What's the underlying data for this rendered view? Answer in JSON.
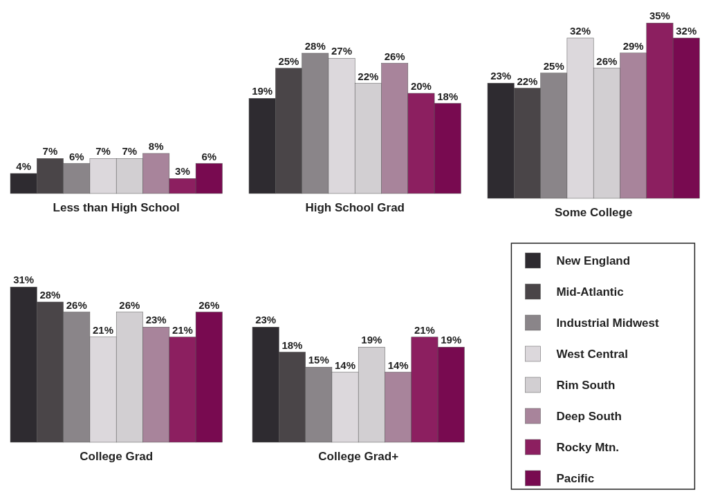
{
  "chart_data": [
    {
      "type": "bar",
      "xlabel": "Less than High School",
      "categories": [
        null
      ],
      "data_labels": false,
      "legend": false,
      "series": [
        {
          "color": "#2e2b30",
          "values": [
            4
          ],
          "value_labels": [
            "4%"
          ]
        },
        {
          "color": "#4a4548",
          "values": [
            7
          ],
          "value_labels": [
            "7%"
          ]
        },
        {
          "color": "#8a8589",
          "values": [
            6
          ],
          "value_labels": [
            "6%"
          ]
        },
        {
          "color": "#dcd8dc",
          "values": [
            7
          ],
          "value_labels": [
            "7%"
          ]
        },
        {
          "color": "#d2cfd2",
          "values": [
            7
          ],
          "value_labels": [
            "7%"
          ]
        },
        {
          "color": "#a8849b",
          "values": [
            8
          ],
          "value_labels": [
            "8%"
          ]
        },
        {
          "color": "#8c1f60",
          "values": [
            3
          ],
          "value_labels": [
            "3%"
          ]
        },
        {
          "color": "#780a50",
          "values": [
            6
          ],
          "value_labels": [
            "6%"
          ]
        }
      ]
    },
    {
      "type": "bar",
      "xlabel": "High School Grad",
      "categories": [
        null
      ],
      "legend": false,
      "series": [
        {
          "color": "#2e2b30",
          "values": [
            19
          ],
          "value_labels": [
            "19%"
          ]
        },
        {
          "color": "#4a4548",
          "values": [
            25
          ],
          "value_labels": [
            "25%"
          ]
        },
        {
          "color": "#8a8589",
          "values": [
            28
          ],
          "value_labels": [
            "28%"
          ]
        },
        {
          "color": "#dcd8dc",
          "values": [
            27
          ],
          "value_labels": [
            "27%"
          ]
        },
        {
          "color": "#d2cfd2",
          "values": [
            22
          ],
          "value_labels": [
            "22%"
          ]
        },
        {
          "color": "#a8849b",
          "values": [
            26
          ],
          "value_labels": [
            "26%"
          ]
        },
        {
          "color": "#8c1f60",
          "values": [
            20
          ],
          "value_labels": [
            "20%"
          ]
        },
        {
          "color": "#780a50",
          "values": [
            18
          ],
          "value_labels": [
            "18%"
          ]
        }
      ]
    },
    {
      "type": "bar",
      "xlabel": "Some College",
      "categories": [
        null
      ],
      "legend": false,
      "series": [
        {
          "color": "#2e2b30",
          "values": [
            23
          ],
          "value_labels": [
            "23%"
          ]
        },
        {
          "color": "#4a4548",
          "values": [
            22
          ],
          "value_labels": [
            "22%"
          ]
        },
        {
          "color": "#8a8589",
          "values": [
            25
          ],
          "value_labels": [
            "25%"
          ]
        },
        {
          "color": "#dcd8dc",
          "values": [
            32
          ],
          "value_labels": [
            "32%"
          ]
        },
        {
          "color": "#d2cfd2",
          "values": [
            26
          ],
          "value_labels": [
            "26%"
          ]
        },
        {
          "color": "#a8849b",
          "values": [
            29
          ],
          "value_labels": [
            "29%"
          ]
        },
        {
          "color": "#8c1f60",
          "values": [
            35
          ],
          "value_labels": [
            "35%"
          ]
        },
        {
          "color": "#780a50",
          "values": [
            32
          ],
          "value_labels": [
            "32%"
          ]
        }
      ]
    },
    {
      "type": "bar",
      "xlabel": "College Grad",
      "categories": [
        null
      ],
      "legend": false,
      "series": [
        {
          "color": "#2e2b30",
          "values": [
            31
          ],
          "value_labels": [
            "31%"
          ]
        },
        {
          "color": "#4a4548",
          "values": [
            28
          ],
          "value_labels": [
            "28%"
          ]
        },
        {
          "color": "#8a8589",
          "values": [
            26
          ],
          "value_labels": [
            "26%"
          ]
        },
        {
          "color": "#dcd8dc",
          "values": [
            21
          ],
          "value_labels": [
            "21%"
          ]
        },
        {
          "color": "#d2cfd2",
          "values": [
            26
          ],
          "value_labels": [
            "26%"
          ]
        },
        {
          "color": "#a8849b",
          "values": [
            23
          ],
          "value_labels": [
            "23%"
          ]
        },
        {
          "color": "#8c1f60",
          "values": [
            21
          ],
          "value_labels": [
            "21%"
          ]
        },
        {
          "color": "#780a50",
          "values": [
            26
          ],
          "value_labels": [
            "26%"
          ]
        }
      ]
    },
    {
      "type": "bar",
      "xlabel": "College Grad+",
      "categories": [
        null
      ],
      "legend": "right",
      "series": [
        {
          "name": "New England",
          "color": "#2e2b30",
          "values": [
            23
          ],
          "value_labels": [
            "23%"
          ]
        },
        {
          "name": "Mid-Atlantic",
          "color": "#4a4548",
          "values": [
            18
          ],
          "value_labels": [
            "18%"
          ]
        },
        {
          "name": "Industrial Midwest",
          "color": "#8a8589",
          "values": [
            15
          ],
          "value_labels": [
            "15%"
          ]
        },
        {
          "name": "West Central",
          "color": "#dcd8dc",
          "values": [
            14
          ],
          "value_labels": [
            "14%"
          ]
        },
        {
          "name": "Rim South",
          "color": "#d2cfd2",
          "values": [
            19
          ],
          "value_labels": [
            "19%"
          ]
        },
        {
          "name": "Deep South",
          "color": "#a8849b",
          "values": [
            14
          ],
          "value_labels": [
            "14%"
          ]
        },
        {
          "name": "Rocky Mtn.",
          "color": "#8c1f60",
          "values": [
            21
          ],
          "value_labels": [
            "21%"
          ]
        },
        {
          "name": "Pacific",
          "color": "#780a50",
          "values": [
            19
          ],
          "value_labels": [
            "19%"
          ]
        }
      ]
    }
  ]
}
